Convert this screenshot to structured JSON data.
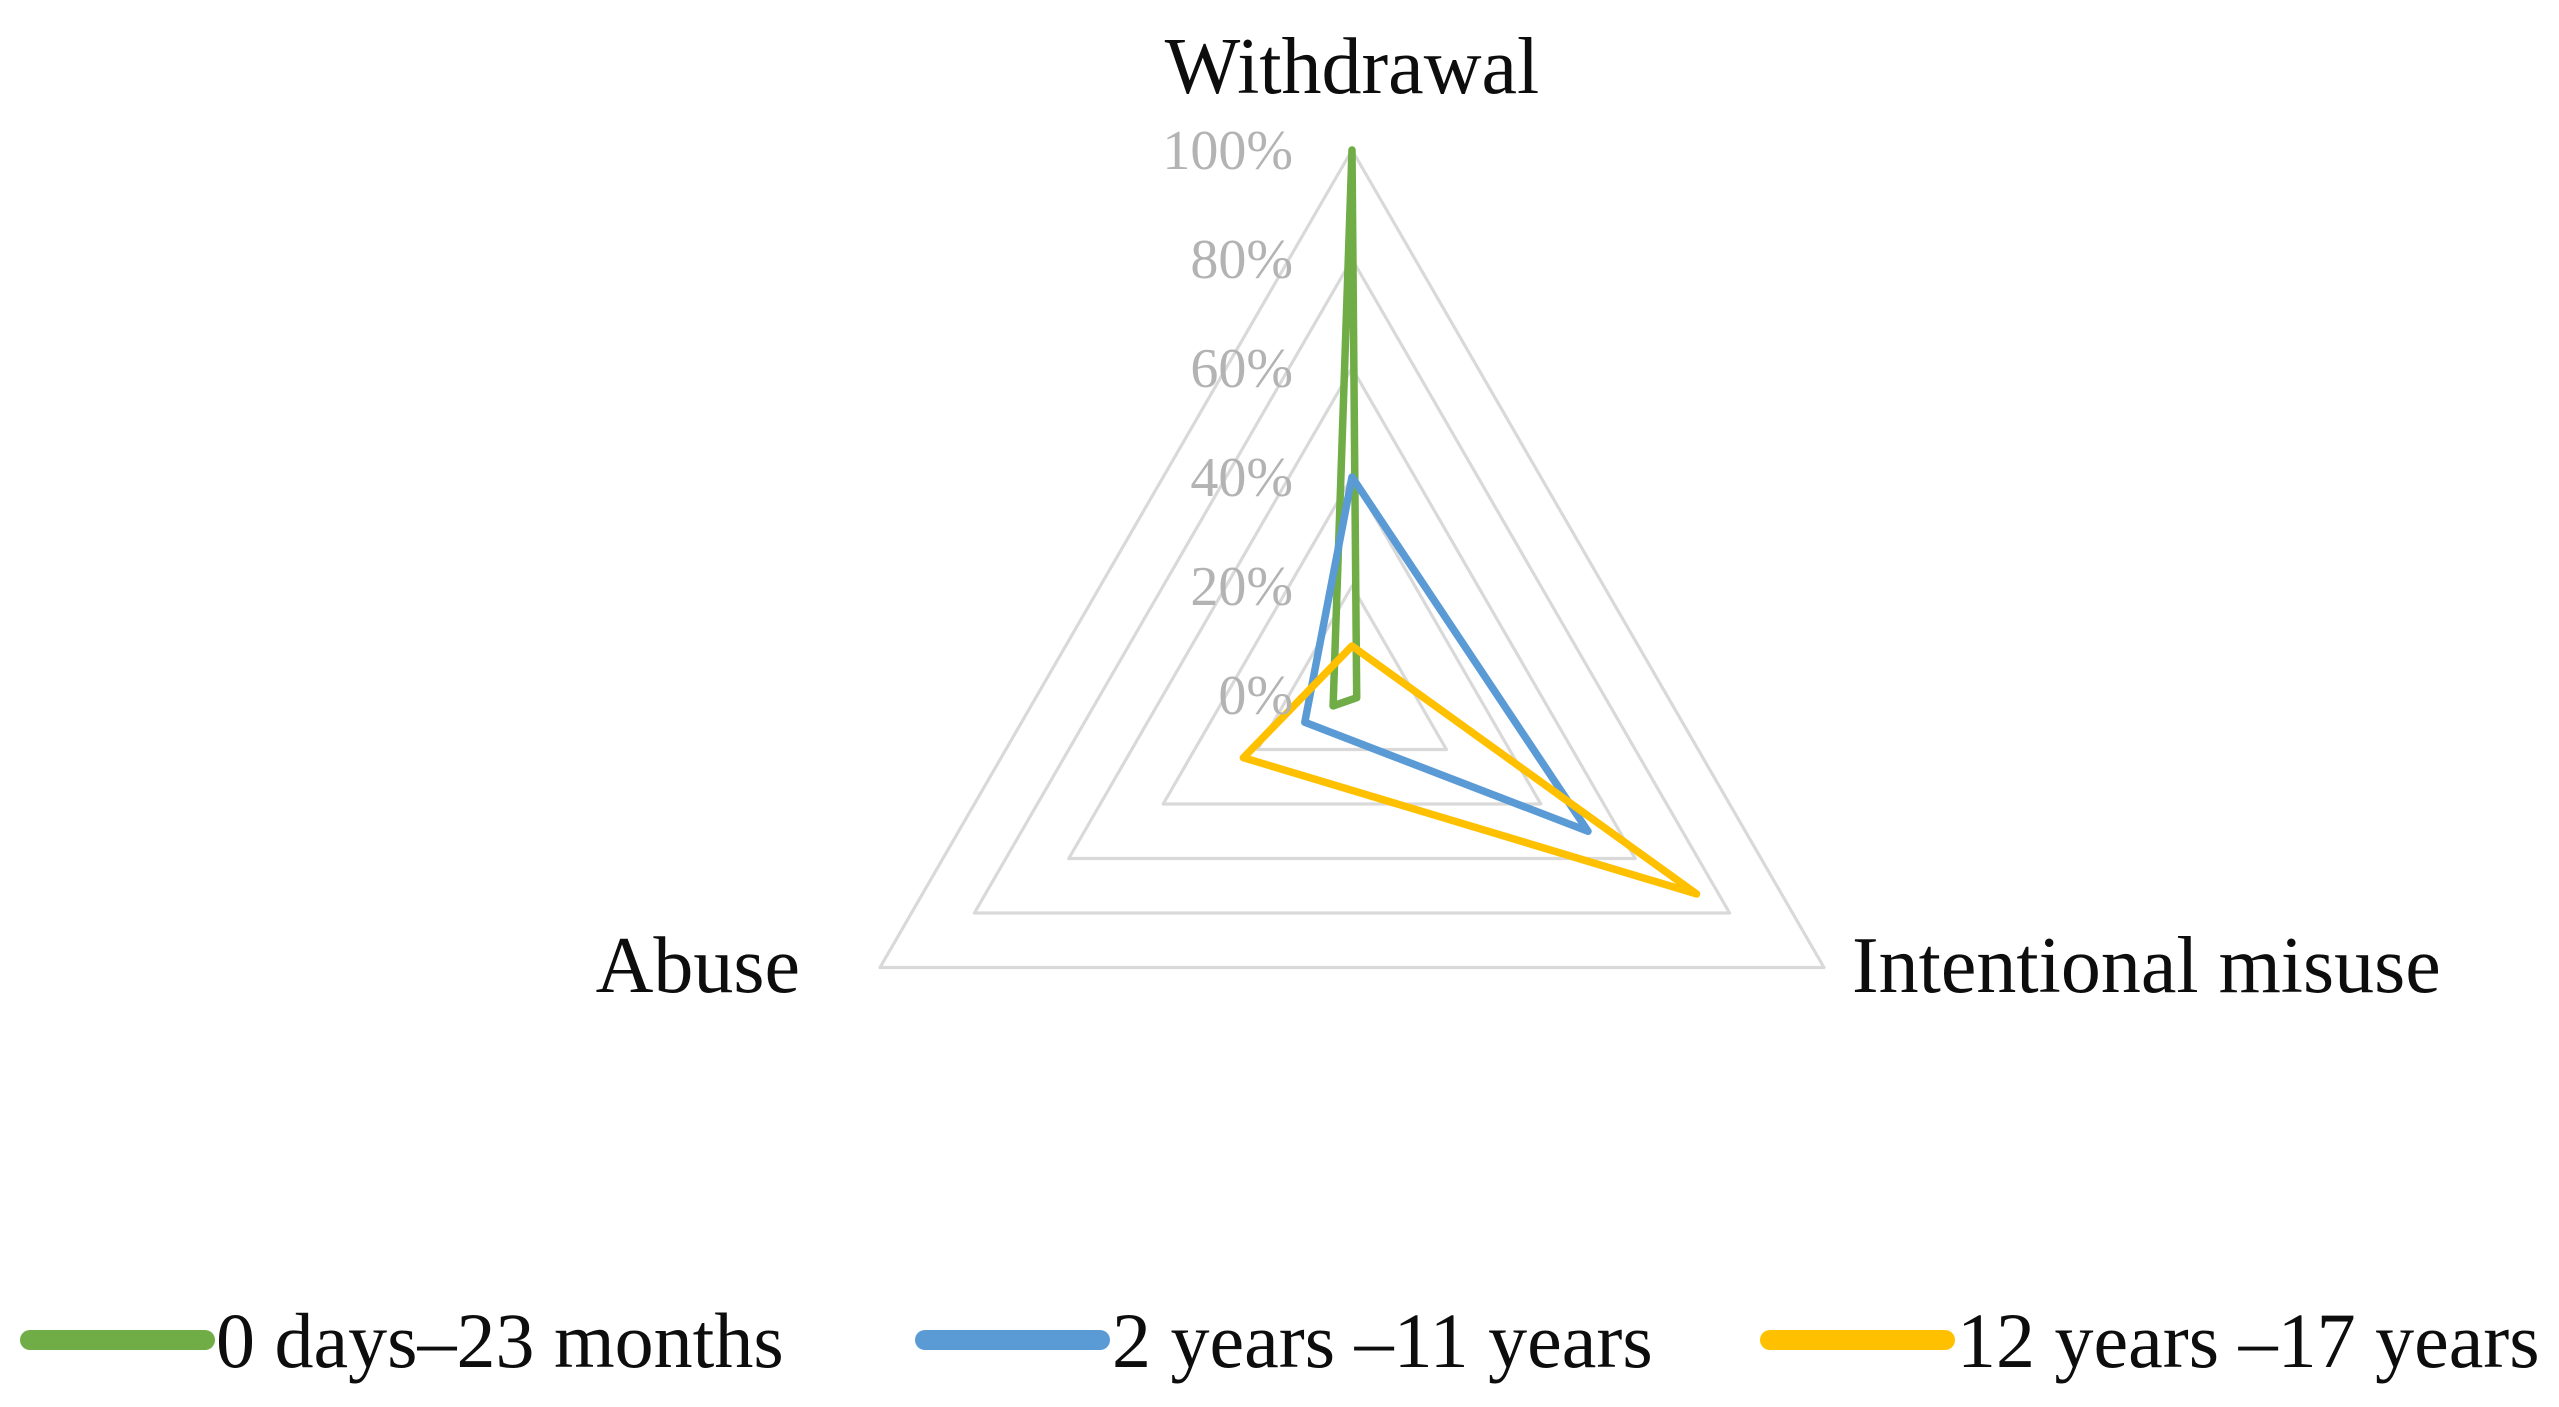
{
  "chart_data": {
    "type": "radar",
    "title": "",
    "axes": [
      "Withdrawal",
      "Intentional misuse",
      "Abuse"
    ],
    "ticks": [
      "100%",
      "80%",
      "60%",
      "40%",
      "20%",
      "0%"
    ],
    "tick_interval_pct": 20,
    "value_range": [
      0,
      100
    ],
    "grid": "concentric triangles every 20%",
    "grid_color": "#D9D9D9",
    "tick_label_color": "#B3B3B3",
    "axis_label_color": "#0D0D0D",
    "legend_position": "bottom",
    "series": [
      {
        "name": "0 days–23 months",
        "color": "#70AD47",
        "values": [
          100,
          1,
          4
        ]
      },
      {
        "name": "2 years –11 years",
        "color": "#5B9BD5",
        "values": [
          40,
          50,
          10
        ]
      },
      {
        "name": "12 years –17 years",
        "color": "#FFC000",
        "values": [
          9,
          73,
          23
        ]
      }
    ]
  }
}
